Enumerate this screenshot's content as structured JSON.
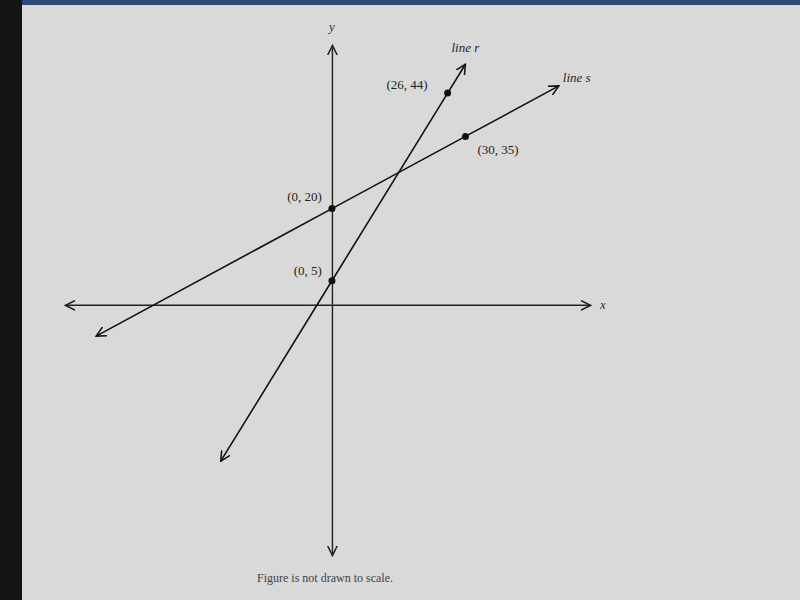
{
  "chart_data": {
    "type": "line",
    "x_label": "x",
    "y_label": "y",
    "annotations": [
      "Figure is not drawn to scale."
    ],
    "xlim": [
      -60,
      58
    ],
    "ylim": [
      -52,
      54
    ],
    "xticks": [],
    "yticks": [],
    "tick_labels": false,
    "grid": false,
    "data_labels": true,
    "series": [
      {
        "name": "line r",
        "color": "#111111",
        "marker": "circle",
        "line_style": "solid",
        "x": [
          -25,
          0,
          26,
          30
        ],
        "values": [
          -32.5,
          5,
          44,
          50
        ],
        "value_labels": [
          null,
          "(0, 5)",
          "(26, 44)",
          null
        ]
      },
      {
        "name": "line s",
        "color": "#111111",
        "marker": "circle",
        "line_style": "solid",
        "x": [
          -53,
          0,
          30,
          51
        ],
        "values": [
          -6.5,
          20,
          35,
          45.5
        ],
        "value_labels": [
          null,
          "(0, 20)",
          "(30, 35)",
          null
        ]
      }
    ]
  }
}
